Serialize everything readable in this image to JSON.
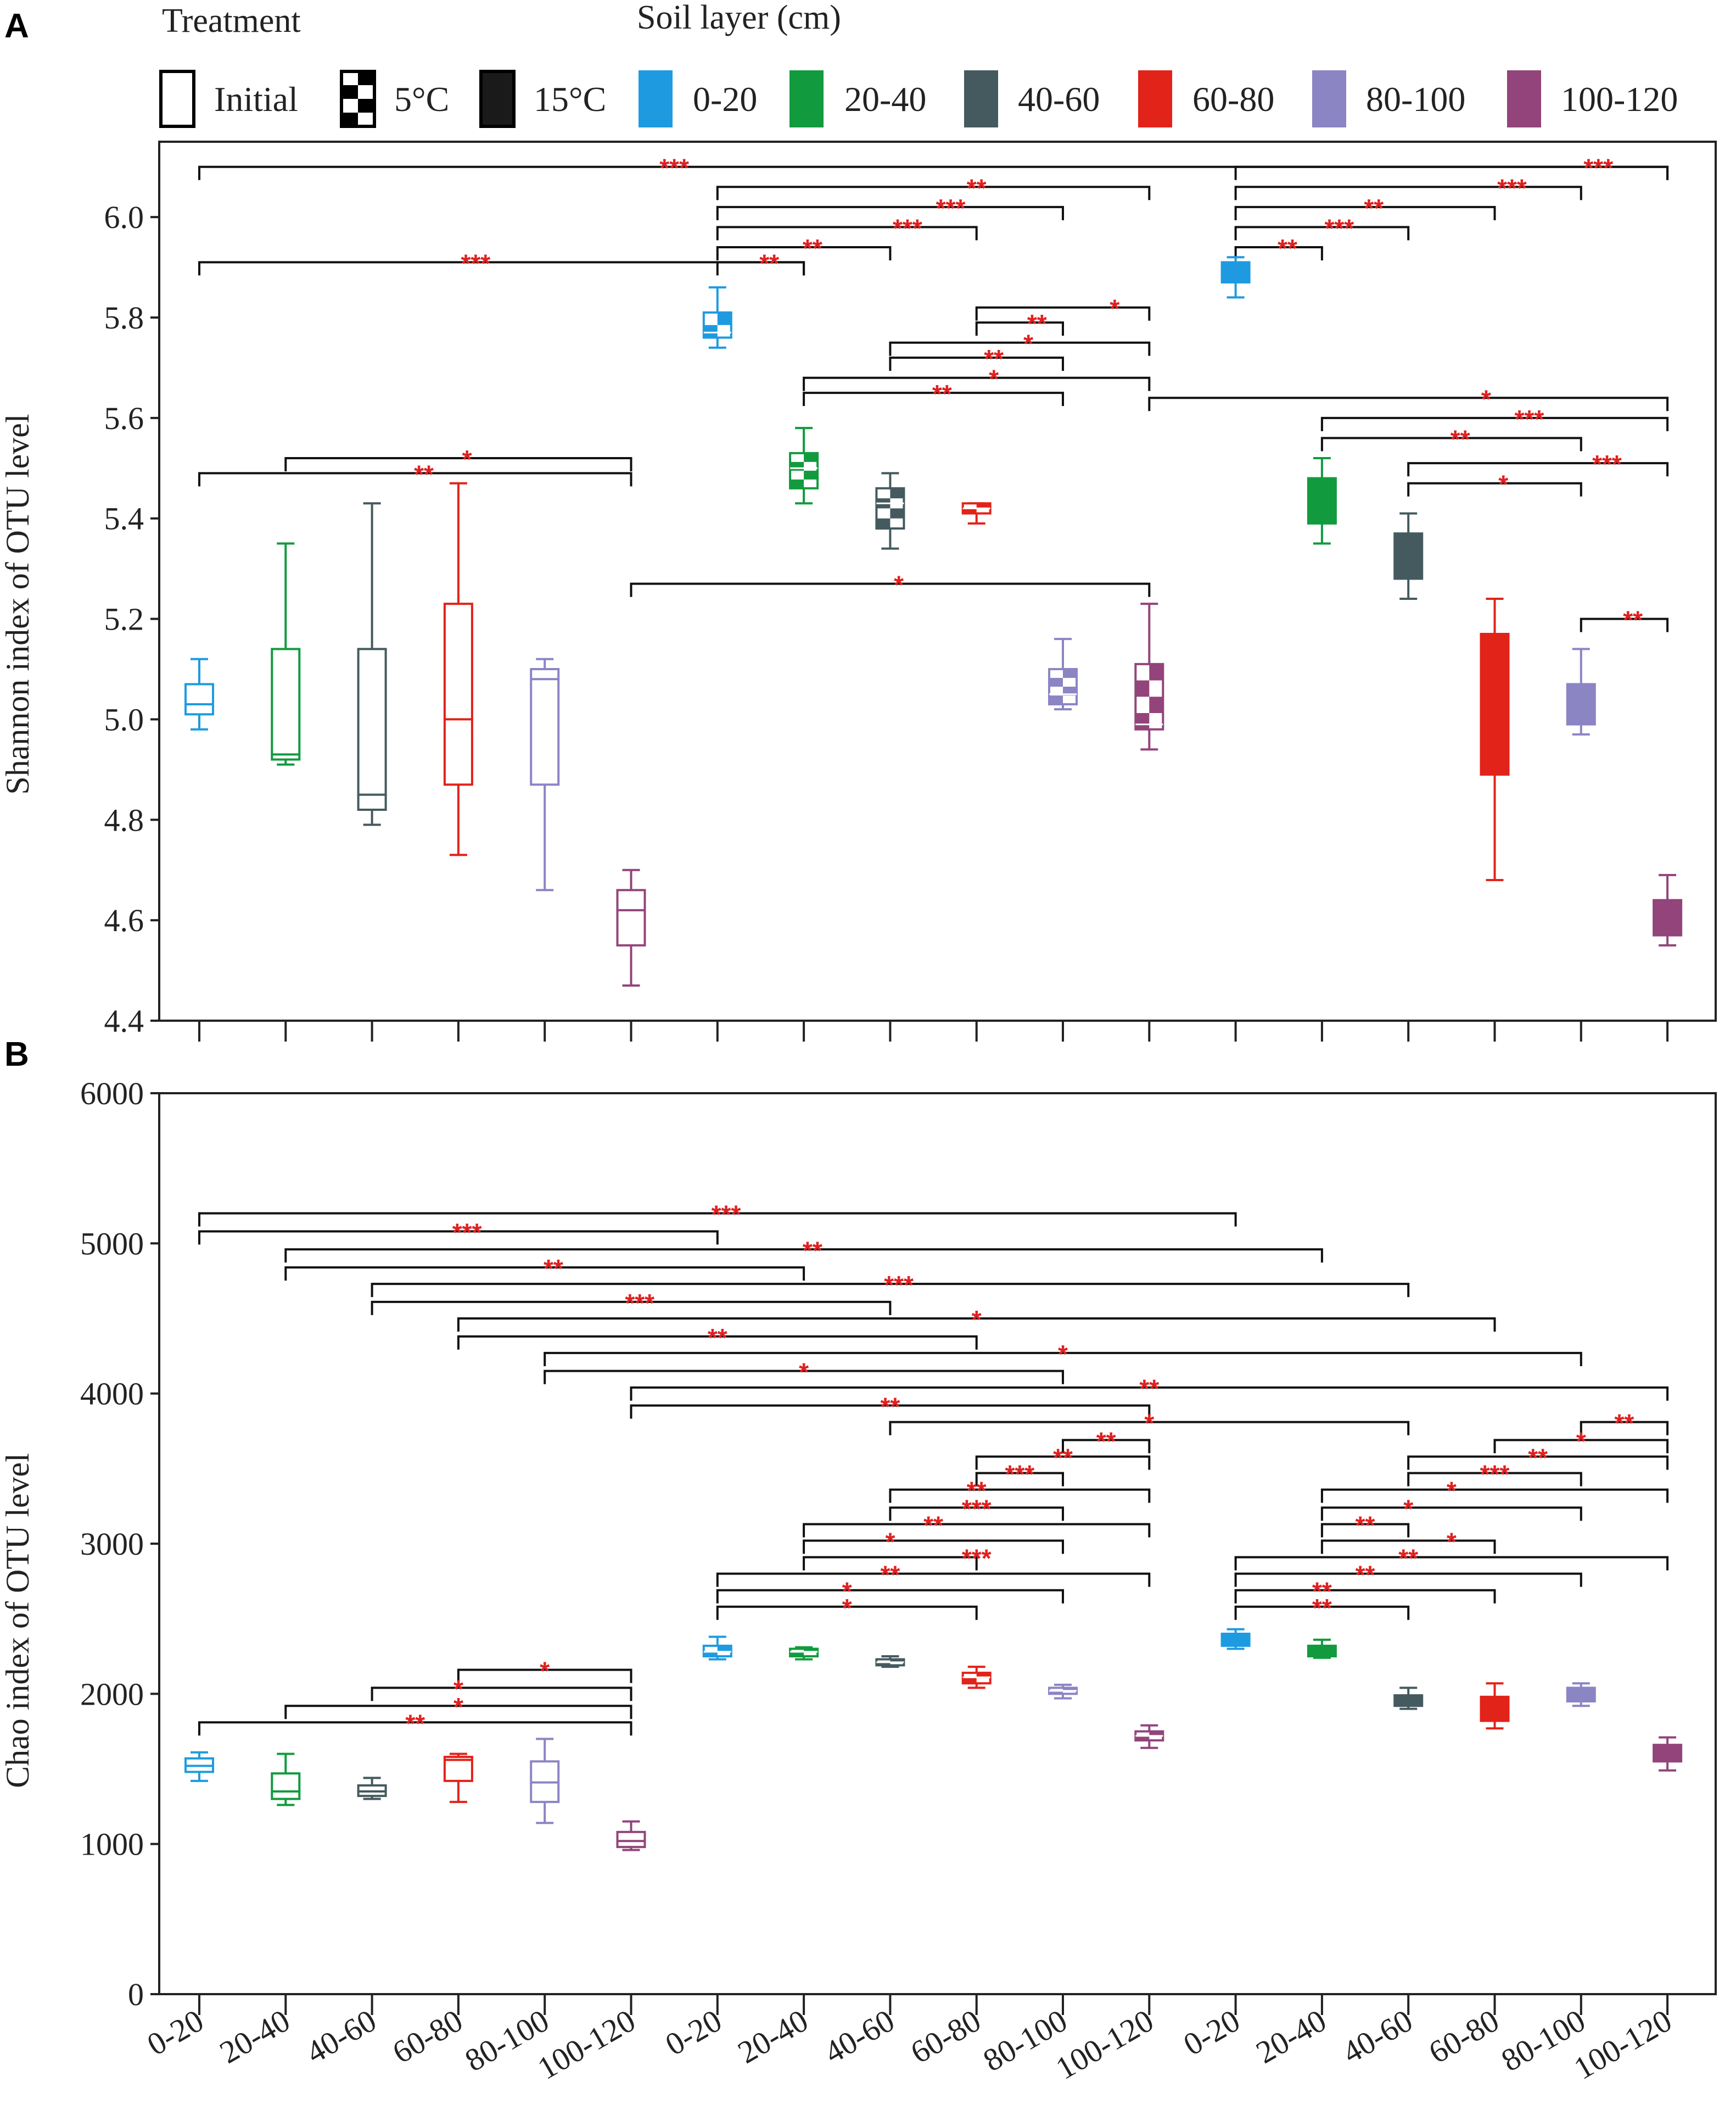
{
  "colors": {
    "0-20": "#1e9be0",
    "20-40": "#119b3e",
    "40-60": "#445a5e",
    "60-80": "#e2231a",
    "80-100": "#8b85c4",
    "100-120": "#93447a"
  },
  "legend": {
    "treatment_title": "Treatment",
    "soil_title": "Soil layer (cm)",
    "treatments": [
      {
        "key": "initial",
        "label": "Initial"
      },
      {
        "key": "5c",
        "label": "5°C"
      },
      {
        "key": "15c",
        "label": "15°C"
      }
    ],
    "layers": [
      "0-20",
      "20-40",
      "40-60",
      "60-80",
      "80-100",
      "100-120"
    ]
  },
  "x_labels": [
    "0-20",
    "20-40",
    "40-60",
    "60-80",
    "80-100",
    "100-120",
    "0-20",
    "20-40",
    "40-60",
    "60-80",
    "80-100",
    "100-120",
    "0-20",
    "20-40",
    "40-60",
    "60-80",
    "80-100",
    "100-120"
  ],
  "chart_data": [
    {
      "id": "A",
      "panel_label": "A",
      "type": "box",
      "ylabel": "Shannon index of OTU level",
      "ylim": [
        4.4,
        6.15
      ],
      "yticks": [
        4.4,
        4.6,
        4.8,
        5.0,
        5.2,
        5.4,
        5.6,
        5.8,
        6.0
      ],
      "ytick_labels": [
        "4.4",
        "4.6",
        "4.8",
        "5.0",
        "5.2",
        "5.4",
        "5.6",
        "5.8",
        "6.0"
      ],
      "boxes": [
        {
          "group": "Initial",
          "layer": "0-20",
          "min": 4.98,
          "q1": 5.01,
          "median": 5.03,
          "q3": 5.07,
          "max": 5.12
        },
        {
          "group": "Initial",
          "layer": "20-40",
          "min": 4.91,
          "q1": 4.92,
          "median": 4.93,
          "q3": 5.14,
          "max": 5.35
        },
        {
          "group": "Initial",
          "layer": "40-60",
          "min": 4.79,
          "q1": 4.82,
          "median": 4.85,
          "q3": 5.14,
          "max": 5.43
        },
        {
          "group": "Initial",
          "layer": "60-80",
          "min": 4.73,
          "q1": 4.87,
          "median": 5.0,
          "q3": 5.23,
          "max": 5.47
        },
        {
          "group": "Initial",
          "layer": "80-100",
          "min": 4.66,
          "q1": 4.87,
          "median": 5.08,
          "q3": 5.1,
          "max": 5.12
        },
        {
          "group": "Initial",
          "layer": "100-120",
          "min": 4.47,
          "q1": 4.55,
          "median": 4.62,
          "q3": 4.66,
          "max": 4.7
        },
        {
          "group": "5°C",
          "layer": "0-20",
          "min": 5.74,
          "q1": 5.76,
          "median": 5.77,
          "q3": 5.81,
          "max": 5.86
        },
        {
          "group": "5°C",
          "layer": "20-40",
          "min": 5.43,
          "q1": 5.46,
          "median": 5.5,
          "q3": 5.53,
          "max": 5.58
        },
        {
          "group": "5°C",
          "layer": "40-60",
          "min": 5.34,
          "q1": 5.38,
          "median": 5.43,
          "q3": 5.46,
          "max": 5.49
        },
        {
          "group": "5°C",
          "layer": "60-80",
          "min": 5.39,
          "q1": 5.41,
          "median": 5.42,
          "q3": 5.43,
          "max": 5.43
        },
        {
          "group": "5°C",
          "layer": "80-100",
          "min": 5.02,
          "q1": 5.03,
          "median": 5.05,
          "q3": 5.1,
          "max": 5.16
        },
        {
          "group": "5°C",
          "layer": "100-120",
          "min": 4.94,
          "q1": 4.98,
          "median": 4.99,
          "q3": 5.11,
          "max": 5.23
        },
        {
          "group": "15°C",
          "layer": "0-20",
          "min": 5.84,
          "q1": 5.87,
          "median": 5.89,
          "q3": 5.91,
          "max": 5.92
        },
        {
          "group": "15°C",
          "layer": "20-40",
          "min": 5.35,
          "q1": 5.39,
          "median": 5.42,
          "q3": 5.48,
          "max": 5.52
        },
        {
          "group": "15°C",
          "layer": "40-60",
          "min": 5.24,
          "q1": 5.28,
          "median": 5.32,
          "q3": 5.37,
          "max": 5.41
        },
        {
          "group": "15°C",
          "layer": "60-80",
          "min": 4.68,
          "q1": 4.89,
          "median": 5.02,
          "q3": 5.17,
          "max": 5.24
        },
        {
          "group": "15°C",
          "layer": "80-100",
          "min": 4.97,
          "q1": 4.99,
          "median": 5.02,
          "q3": 5.07,
          "max": 5.14
        },
        {
          "group": "15°C",
          "layer": "100-120",
          "min": 4.55,
          "q1": 4.57,
          "median": 4.6,
          "q3": 4.64,
          "max": 4.69
        }
      ],
      "comparisons": [
        {
          "from": 1,
          "to": 18,
          "level": 6.1,
          "label": "***",
          "label_pos": 6.5
        },
        {
          "from": 7,
          "to": 12,
          "level": 6.06,
          "label": "**",
          "label_pos": 10
        },
        {
          "from": 7,
          "to": 11,
          "level": 6.02,
          "label": "***",
          "label_pos": 9.7
        },
        {
          "from": 7,
          "to": 10,
          "level": 5.98,
          "label": "***",
          "label_pos": 9.2
        },
        {
          "from": 7,
          "to": 9,
          "level": 5.94,
          "label": "**",
          "label_pos": 8.1
        },
        {
          "from": 1,
          "to": 8,
          "level": 5.91,
          "label": "***",
          "label_pos": 4.2
        },
        {
          "from": 7,
          "to": 8,
          "level": 5.91,
          "label": "**",
          "label_pos": 7.6
        },
        {
          "from": 13,
          "to": 18,
          "level": 6.1,
          "label": "***",
          "label_pos": 17.2
        },
        {
          "from": 13,
          "to": 17,
          "level": 6.06,
          "label": "***",
          "label_pos": 16.2
        },
        {
          "from": 13,
          "to": 16,
          "level": 6.02,
          "label": "**",
          "label_pos": 14.6
        },
        {
          "from": 13,
          "to": 15,
          "level": 5.98,
          "label": "***",
          "label_pos": 14.2
        },
        {
          "from": 13,
          "to": 14,
          "level": 5.94,
          "label": "**",
          "label_pos": 13.6
        },
        {
          "from": 10,
          "to": 12,
          "level": 5.82,
          "label": "*",
          "label_pos": 11.6
        },
        {
          "from": 10,
          "to": 11,
          "level": 5.79,
          "label": "**",
          "label_pos": 10.7
        },
        {
          "from": 9,
          "to": 12,
          "level": 5.75,
          "label": "*",
          "label_pos": 10.6
        },
        {
          "from": 9,
          "to": 11,
          "level": 5.72,
          "label": "**",
          "label_pos": 10.2
        },
        {
          "from": 8,
          "to": 12,
          "level": 5.68,
          "label": "*",
          "label_pos": 10.2
        },
        {
          "from": 8,
          "to": 11,
          "level": 5.65,
          "label": "**",
          "label_pos": 9.6
        },
        {
          "from": 12,
          "to": 18,
          "level": 5.64,
          "label": "*",
          "label_pos": 15.9
        },
        {
          "from": 14,
          "to": 18,
          "level": 5.6,
          "label": "***",
          "label_pos": 16.4
        },
        {
          "from": 14,
          "to": 17,
          "level": 5.56,
          "label": "**",
          "label_pos": 15.6
        },
        {
          "from": 15,
          "to": 18,
          "level": 5.51,
          "label": "***",
          "label_pos": 17.3
        },
        {
          "from": 15,
          "to": 17,
          "level": 5.47,
          "label": "*",
          "label_pos": 16.1
        },
        {
          "from": 17,
          "to": 18,
          "level": 5.2,
          "label": "**",
          "label_pos": 17.6
        },
        {
          "from": 1,
          "to": 6,
          "level": 5.49,
          "label": "**",
          "label_pos": 3.6
        },
        {
          "from": 2,
          "to": 6,
          "level": 5.52,
          "label": "*",
          "label_pos": 4.1
        },
        {
          "from": 6,
          "to": 12,
          "level": 5.27,
          "label": "*",
          "label_pos": 9.1
        }
      ]
    },
    {
      "id": "B",
      "panel_label": "B",
      "type": "box",
      "ylabel": "Chao index of OTU level",
      "ylim": [
        0,
        6000
      ],
      "yticks": [
        0,
        1000,
        2000,
        3000,
        4000,
        5000,
        6000
      ],
      "ytick_labels": [
        "0",
        "1000",
        "2000",
        "3000",
        "4000",
        "5000",
        "6000"
      ],
      "boxes": [
        {
          "group": "Initial",
          "layer": "0-20",
          "min": 1420,
          "q1": 1480,
          "median": 1520,
          "q3": 1570,
          "max": 1610
        },
        {
          "group": "Initial",
          "layer": "20-40",
          "min": 1260,
          "q1": 1300,
          "median": 1350,
          "q3": 1470,
          "max": 1600
        },
        {
          "group": "Initial",
          "layer": "40-60",
          "min": 1300,
          "q1": 1320,
          "median": 1350,
          "q3": 1390,
          "max": 1440
        },
        {
          "group": "Initial",
          "layer": "60-80",
          "min": 1280,
          "q1": 1420,
          "median": 1560,
          "q3": 1580,
          "max": 1600
        },
        {
          "group": "Initial",
          "layer": "80-100",
          "min": 1140,
          "q1": 1280,
          "median": 1410,
          "q3": 1550,
          "max": 1700
        },
        {
          "group": "Initial",
          "layer": "100-120",
          "min": 960,
          "q1": 980,
          "median": 1020,
          "q3": 1080,
          "max": 1150
        },
        {
          "group": "5°C",
          "layer": "0-20",
          "min": 2230,
          "q1": 2250,
          "median": 2280,
          "q3": 2320,
          "max": 2380
        },
        {
          "group": "5°C",
          "layer": "20-40",
          "min": 2230,
          "q1": 2250,
          "median": 2280,
          "q3": 2300,
          "max": 2310
        },
        {
          "group": "5°C",
          "layer": "40-60",
          "min": 2180,
          "q1": 2190,
          "median": 2210,
          "q3": 2230,
          "max": 2250
        },
        {
          "group": "5°C",
          "layer": "60-80",
          "min": 2040,
          "q1": 2070,
          "median": 2110,
          "q3": 2140,
          "max": 2180
        },
        {
          "group": "5°C",
          "layer": "80-100",
          "min": 1970,
          "q1": 2000,
          "median": 2020,
          "q3": 2040,
          "max": 2060
        },
        {
          "group": "5°C",
          "layer": "100-120",
          "min": 1640,
          "q1": 1690,
          "median": 1720,
          "q3": 1750,
          "max": 1790
        },
        {
          "group": "15°C",
          "layer": "0-20",
          "min": 2300,
          "q1": 2320,
          "median": 2360,
          "q3": 2400,
          "max": 2430
        },
        {
          "group": "15°C",
          "layer": "20-40",
          "min": 2240,
          "q1": 2250,
          "median": 2290,
          "q3": 2320,
          "max": 2360
        },
        {
          "group": "15°C",
          "layer": "40-60",
          "min": 1900,
          "q1": 1920,
          "median": 1950,
          "q3": 1990,
          "max": 2040
        },
        {
          "group": "15°C",
          "layer": "60-80",
          "min": 1770,
          "q1": 1820,
          "median": 1900,
          "q3": 1980,
          "max": 2070
        },
        {
          "group": "15°C",
          "layer": "80-100",
          "min": 1920,
          "q1": 1950,
          "median": 2000,
          "q3": 2040,
          "max": 2070
        },
        {
          "group": "15°C",
          "layer": "100-120",
          "min": 1490,
          "q1": 1550,
          "median": 1610,
          "q3": 1660,
          "max": 1710
        }
      ],
      "comparisons": [
        {
          "from": 1,
          "to": 13,
          "level": 5200,
          "label": "***",
          "label_pos": 7.1
        },
        {
          "from": 1,
          "to": 7,
          "level": 5080,
          "label": "***",
          "label_pos": 4.1
        },
        {
          "from": 2,
          "to": 14,
          "level": 4960,
          "label": "**",
          "label_pos": 8.1
        },
        {
          "from": 2,
          "to": 8,
          "level": 4840,
          "label": "**",
          "label_pos": 5.1
        },
        {
          "from": 3,
          "to": 15,
          "level": 4730,
          "label": "***",
          "label_pos": 9.1
        },
        {
          "from": 3,
          "to": 9,
          "level": 4610,
          "label": "***",
          "label_pos": 6.1
        },
        {
          "from": 4,
          "to": 16,
          "level": 4500,
          "label": "*",
          "label_pos": 10.0
        },
        {
          "from": 4,
          "to": 10,
          "level": 4380,
          "label": "**",
          "label_pos": 7.0
        },
        {
          "from": 5,
          "to": 17,
          "level": 4270,
          "label": "*",
          "label_pos": 11.0
        },
        {
          "from": 5,
          "to": 11,
          "level": 4150,
          "label": "*",
          "label_pos": 8.0
        },
        {
          "from": 6,
          "to": 18,
          "level": 4040,
          "label": "**",
          "label_pos": 12.0
        },
        {
          "from": 6,
          "to": 12,
          "level": 3920,
          "label": "**",
          "label_pos": 9.0
        },
        {
          "from": 9,
          "to": 15,
          "level": 3810,
          "label": "*",
          "label_pos": 12.0
        },
        {
          "from": 17,
          "to": 18,
          "level": 3810,
          "label": "**",
          "label_pos": 17.5
        },
        {
          "from": 11,
          "to": 12,
          "level": 3690,
          "label": "**",
          "label_pos": 11.5
        },
        {
          "from": 16,
          "to": 18,
          "level": 3690,
          "label": "*",
          "label_pos": 17.0
        },
        {
          "from": 10,
          "to": 12,
          "level": 3580,
          "label": "**",
          "label_pos": 11.0
        },
        {
          "from": 15,
          "to": 18,
          "level": 3580,
          "label": "**",
          "label_pos": 16.5
        },
        {
          "from": 10,
          "to": 11,
          "level": 3470,
          "label": "***",
          "label_pos": 10.5
        },
        {
          "from": 15,
          "to": 17,
          "level": 3470,
          "label": "***",
          "label_pos": 16.0
        },
        {
          "from": 9,
          "to": 12,
          "level": 3360,
          "label": "**",
          "label_pos": 10.0
        },
        {
          "from": 14,
          "to": 18,
          "level": 3360,
          "label": "*",
          "label_pos": 15.5
        },
        {
          "from": 9,
          "to": 11,
          "level": 3240,
          "label": "***",
          "label_pos": 10.0
        },
        {
          "from": 14,
          "to": 17,
          "level": 3240,
          "label": "*",
          "label_pos": 15.0
        },
        {
          "from": 8,
          "to": 12,
          "level": 3130,
          "label": "**",
          "label_pos": 9.5
        },
        {
          "from": 14,
          "to": 15,
          "level": 3130,
          "label": "**",
          "label_pos": 14.5
        },
        {
          "from": 8,
          "to": 11,
          "level": 3020,
          "label": "*",
          "label_pos": 9.0
        },
        {
          "from": 14,
          "to": 16,
          "level": 3020,
          "label": "*",
          "label_pos": 15.5
        },
        {
          "from": 8,
          "to": 10,
          "level": 2910,
          "label": "***",
          "label_pos": 10.0
        },
        {
          "from": 13,
          "to": 18,
          "level": 2910,
          "label": "**",
          "label_pos": 15.0
        },
        {
          "from": 7,
          "to": 12,
          "level": 2800,
          "label": "**",
          "label_pos": 9.0
        },
        {
          "from": 13,
          "to": 17,
          "level": 2800,
          "label": "**",
          "label_pos": 14.5
        },
        {
          "from": 7,
          "to": 11,
          "level": 2690,
          "label": "*",
          "label_pos": 8.5
        },
        {
          "from": 13,
          "to": 16,
          "level": 2690,
          "label": "**",
          "label_pos": 14.0
        },
        {
          "from": 7,
          "to": 10,
          "level": 2580,
          "label": "*",
          "label_pos": 8.5
        },
        {
          "from": 13,
          "to": 15,
          "level": 2580,
          "label": "**",
          "label_pos": 14.0
        },
        {
          "from": 4,
          "to": 6,
          "level": 2160,
          "label": "*",
          "label_pos": 5.0
        },
        {
          "from": 3,
          "to": 6,
          "level": 2040,
          "label": "*",
          "label_pos": 4.0
        },
        {
          "from": 2,
          "to": 6,
          "level": 1920,
          "label": "*",
          "label_pos": 4.0
        },
        {
          "from": 1,
          "to": 6,
          "level": 1810,
          "label": "**",
          "label_pos": 3.5
        }
      ]
    }
  ]
}
